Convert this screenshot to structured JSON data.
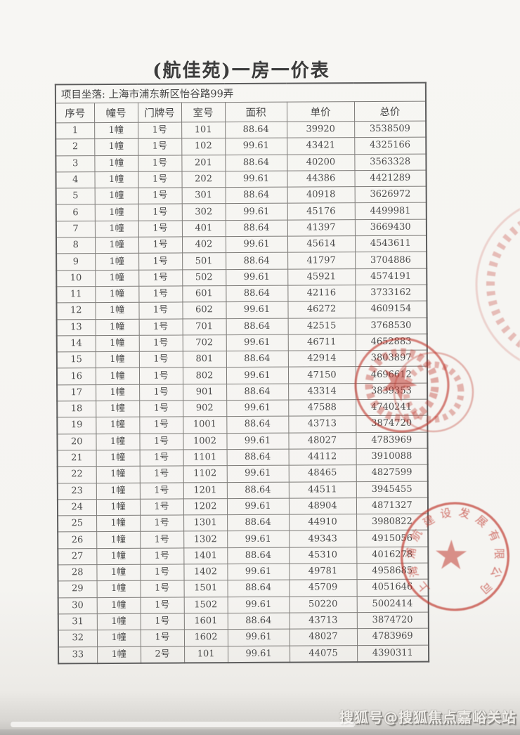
{
  "page": {
    "title": "(航佳苑)一房一价表"
  },
  "table": {
    "site_row": "项目坐落: 上海市浦东新区怡谷路99弄",
    "columns": [
      "序号",
      "幢号",
      "门牌号",
      "室号",
      "面积",
      "单价",
      "总价"
    ],
    "rows": [
      [
        "1",
        "1幢",
        "1号",
        "101",
        "88.64",
        "39920",
        "3538509"
      ],
      [
        "2",
        "1幢",
        "1号",
        "102",
        "99.61",
        "43421",
        "4325166"
      ],
      [
        "3",
        "1幢",
        "1号",
        "201",
        "88.64",
        "40200",
        "3563328"
      ],
      [
        "4",
        "1幢",
        "1号",
        "202",
        "99.61",
        "44386",
        "4421289"
      ],
      [
        "5",
        "1幢",
        "1号",
        "301",
        "88.64",
        "40918",
        "3626972"
      ],
      [
        "6",
        "1幢",
        "1号",
        "302",
        "99.61",
        "45176",
        "4499981"
      ],
      [
        "7",
        "1幢",
        "1号",
        "401",
        "88.64",
        "41397",
        "3669430"
      ],
      [
        "8",
        "1幢",
        "1号",
        "402",
        "99.61",
        "45614",
        "4543611"
      ],
      [
        "9",
        "1幢",
        "1号",
        "501",
        "88.64",
        "41797",
        "3704886"
      ],
      [
        "10",
        "1幢",
        "1号",
        "502",
        "99.61",
        "45921",
        "4574191"
      ],
      [
        "11",
        "1幢",
        "1号",
        "601",
        "88.64",
        "42116",
        "3733162"
      ],
      [
        "12",
        "1幢",
        "1号",
        "602",
        "99.61",
        "46272",
        "4609154"
      ],
      [
        "13",
        "1幢",
        "1号",
        "701",
        "88.64",
        "42515",
        "3768530"
      ],
      [
        "14",
        "1幢",
        "1号",
        "702",
        "99.61",
        "46711",
        "4652883"
      ],
      [
        "15",
        "1幢",
        "1号",
        "801",
        "88.64",
        "42914",
        "3803897"
      ],
      [
        "16",
        "1幢",
        "1号",
        "802",
        "99.61",
        "47150",
        "4696612"
      ],
      [
        "17",
        "1幢",
        "1号",
        "901",
        "88.64",
        "43314",
        "3839353"
      ],
      [
        "18",
        "1幢",
        "1号",
        "902",
        "99.61",
        "47588",
        "4740241"
      ],
      [
        "19",
        "1幢",
        "1号",
        "1001",
        "88.64",
        "43713",
        "3874720"
      ],
      [
        "20",
        "1幢",
        "1号",
        "1002",
        "99.61",
        "48027",
        "4783969"
      ],
      [
        "21",
        "1幢",
        "1号",
        "1101",
        "88.64",
        "44112",
        "3910088"
      ],
      [
        "22",
        "1幢",
        "1号",
        "1102",
        "99.61",
        "48465",
        "4827599"
      ],
      [
        "23",
        "1幢",
        "1号",
        "1201",
        "88.64",
        "44511",
        "3945455"
      ],
      [
        "24",
        "1幢",
        "1号",
        "1202",
        "99.61",
        "48904",
        "4871327"
      ],
      [
        "25",
        "1幢",
        "1号",
        "1301",
        "88.64",
        "44910",
        "3980822"
      ],
      [
        "26",
        "1幢",
        "1号",
        "1302",
        "99.61",
        "49343",
        "4915056"
      ],
      [
        "27",
        "1幢",
        "1号",
        "1401",
        "88.64",
        "45310",
        "4016278"
      ],
      [
        "28",
        "1幢",
        "1号",
        "1402",
        "99.61",
        "49781",
        "4958685"
      ],
      [
        "29",
        "1幢",
        "1号",
        "1501",
        "88.64",
        "45709",
        "4051646"
      ],
      [
        "30",
        "1幢",
        "1号",
        "1502",
        "99.61",
        "50220",
        "5002414"
      ],
      [
        "31",
        "1幢",
        "1号",
        "1601",
        "88.64",
        "43713",
        "3874720"
      ],
      [
        "32",
        "1幢",
        "1号",
        "1602",
        "99.61",
        "48027",
        "4783969"
      ],
      [
        "33",
        "1幢",
        "2号",
        "101",
        "99.61",
        "44075",
        "4390311"
      ]
    ]
  },
  "stamps": {
    "color": "#c0392f",
    "company_seal": {
      "text": "上海浦航建设发展有限公司"
    }
  },
  "watermark": {
    "text": "搜狐号@搜狐焦点嘉峪关站"
  }
}
